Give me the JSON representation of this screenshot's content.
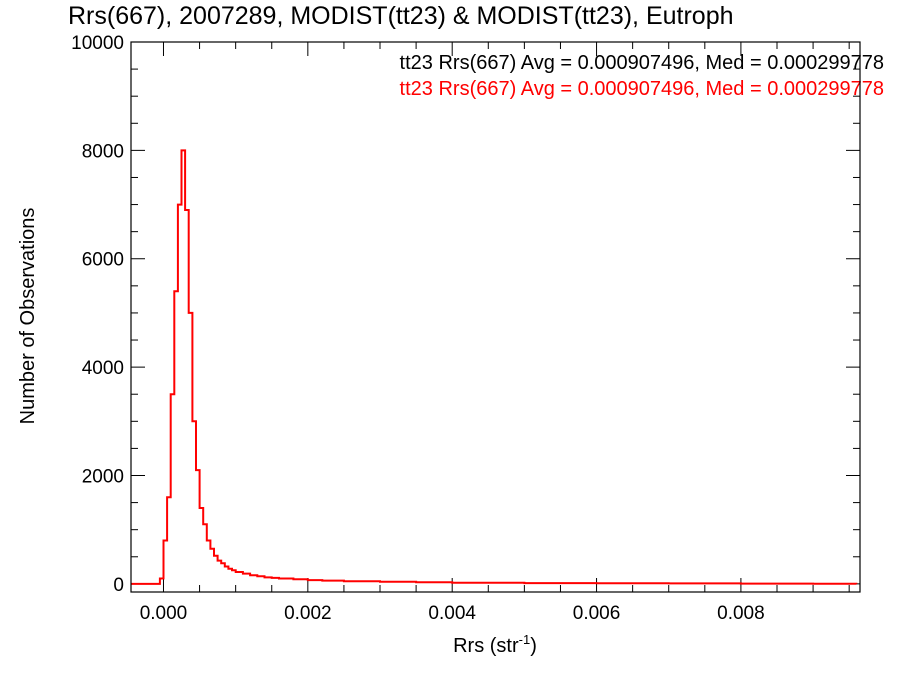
{
  "chart_data": {
    "type": "line",
    "title": "Rrs(667), 2007289, MODIST(tt23) & MODIST(tt23), Eutroph",
    "xlabel": {
      "main": "Rrs (str",
      "sup": "-1",
      "tail": ")"
    },
    "ylabel": "Number of Observations",
    "xlim": [
      -0.00045,
      0.00965
    ],
    "ylim": [
      -150,
      10000
    ],
    "x_ticks": [
      0.0,
      0.002,
      0.004,
      0.006,
      0.008
    ],
    "x_tick_labels": [
      "0.000",
      "0.002",
      "0.004",
      "0.006",
      "0.008"
    ],
    "y_ticks": [
      0,
      2000,
      4000,
      6000,
      8000,
      10000
    ],
    "y_tick_labels": [
      "0",
      "2000",
      "4000",
      "6000",
      "8000",
      "10000"
    ],
    "legend": {
      "placement": "top-right",
      "entries": [
        {
          "text": "tt23 Rrs(667) Avg = 0.000907496, Med = 0.000299778",
          "color": "#000000"
        },
        {
          "text": "tt23 Rrs(667) Avg = 0.000907496, Med = 0.000299778",
          "color": "#ff0000"
        }
      ]
    },
    "series": [
      {
        "name": "tt23 Rrs(667)",
        "color": "#ff0000",
        "step": true,
        "x": [
          -0.00045,
          -0.0001,
          -5e-05,
          0.0,
          5e-05,
          0.0001,
          0.00015,
          0.0002,
          0.00025,
          0.0003,
          0.00035,
          0.0004,
          0.00045,
          0.0005,
          0.00055,
          0.0006,
          0.00065,
          0.0007,
          0.00075,
          0.0008,
          0.00085,
          0.0009,
          0.00095,
          0.001,
          0.0011,
          0.0012,
          0.0013,
          0.0014,
          0.0015,
          0.0016,
          0.0018,
          0.002,
          0.0022,
          0.0025,
          0.003,
          0.0035,
          0.004,
          0.005,
          0.006,
          0.007,
          0.008,
          0.009,
          0.0096
        ],
        "y": [
          0,
          0,
          100,
          800,
          1600,
          3500,
          5400,
          7000,
          8000,
          6900,
          5000,
          3000,
          2100,
          1400,
          1100,
          800,
          650,
          520,
          430,
          380,
          320,
          280,
          250,
          220,
          190,
          160,
          140,
          120,
          110,
          100,
          85,
          70,
          60,
          50,
          40,
          30,
          22,
          15,
          10,
          8,
          5,
          3,
          0
        ]
      }
    ]
  }
}
